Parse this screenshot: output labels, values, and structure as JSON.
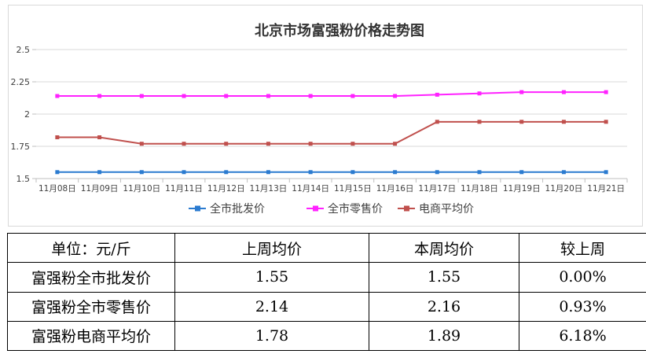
{
  "chart_data": {
    "type": "line",
    "title": "北京市场富强粉价格走势图",
    "categories": [
      "11月08日",
      "11月09日",
      "11月10日",
      "11月11日",
      "11月12日",
      "11月13日",
      "11月14日",
      "11月15日",
      "11月16日",
      "11月17日",
      "11月18日",
      "11月19日",
      "11月20日",
      "11月21日"
    ],
    "series": [
      {
        "name": "全市批发价",
        "color": "#2b7bd0",
        "values": [
          1.55,
          1.55,
          1.55,
          1.55,
          1.55,
          1.55,
          1.55,
          1.55,
          1.55,
          1.55,
          1.55,
          1.55,
          1.55,
          1.55
        ]
      },
      {
        "name": "全市零售价",
        "color": "#ff22ff",
        "values": [
          2.14,
          2.14,
          2.14,
          2.14,
          2.14,
          2.14,
          2.14,
          2.14,
          2.14,
          2.15,
          2.16,
          2.17,
          2.17,
          2.17
        ]
      },
      {
        "name": "电商平均价",
        "color": "#c0504d",
        "values": [
          1.82,
          1.82,
          1.77,
          1.77,
          1.77,
          1.77,
          1.77,
          1.77,
          1.77,
          1.94,
          1.94,
          1.94,
          1.94,
          1.94
        ]
      }
    ],
    "ylim": [
      1.5,
      2.5
    ],
    "yticks": [
      "2.5",
      "2.25",
      "2",
      "1.75",
      "1.5"
    ],
    "grid": true,
    "legend": "bottom"
  },
  "table": {
    "header": [
      "单位：元/斤",
      "上周均价",
      "本周均价",
      "较上周"
    ],
    "rows": [
      [
        "富强粉全市批发价",
        "1.55",
        "1.55",
        "0.00%"
      ],
      [
        "富强粉全市零售价",
        "2.14",
        "2.16",
        "0.93%"
      ],
      [
        "富强粉电商平均价",
        "1.78",
        "1.89",
        "6.18%"
      ]
    ]
  }
}
